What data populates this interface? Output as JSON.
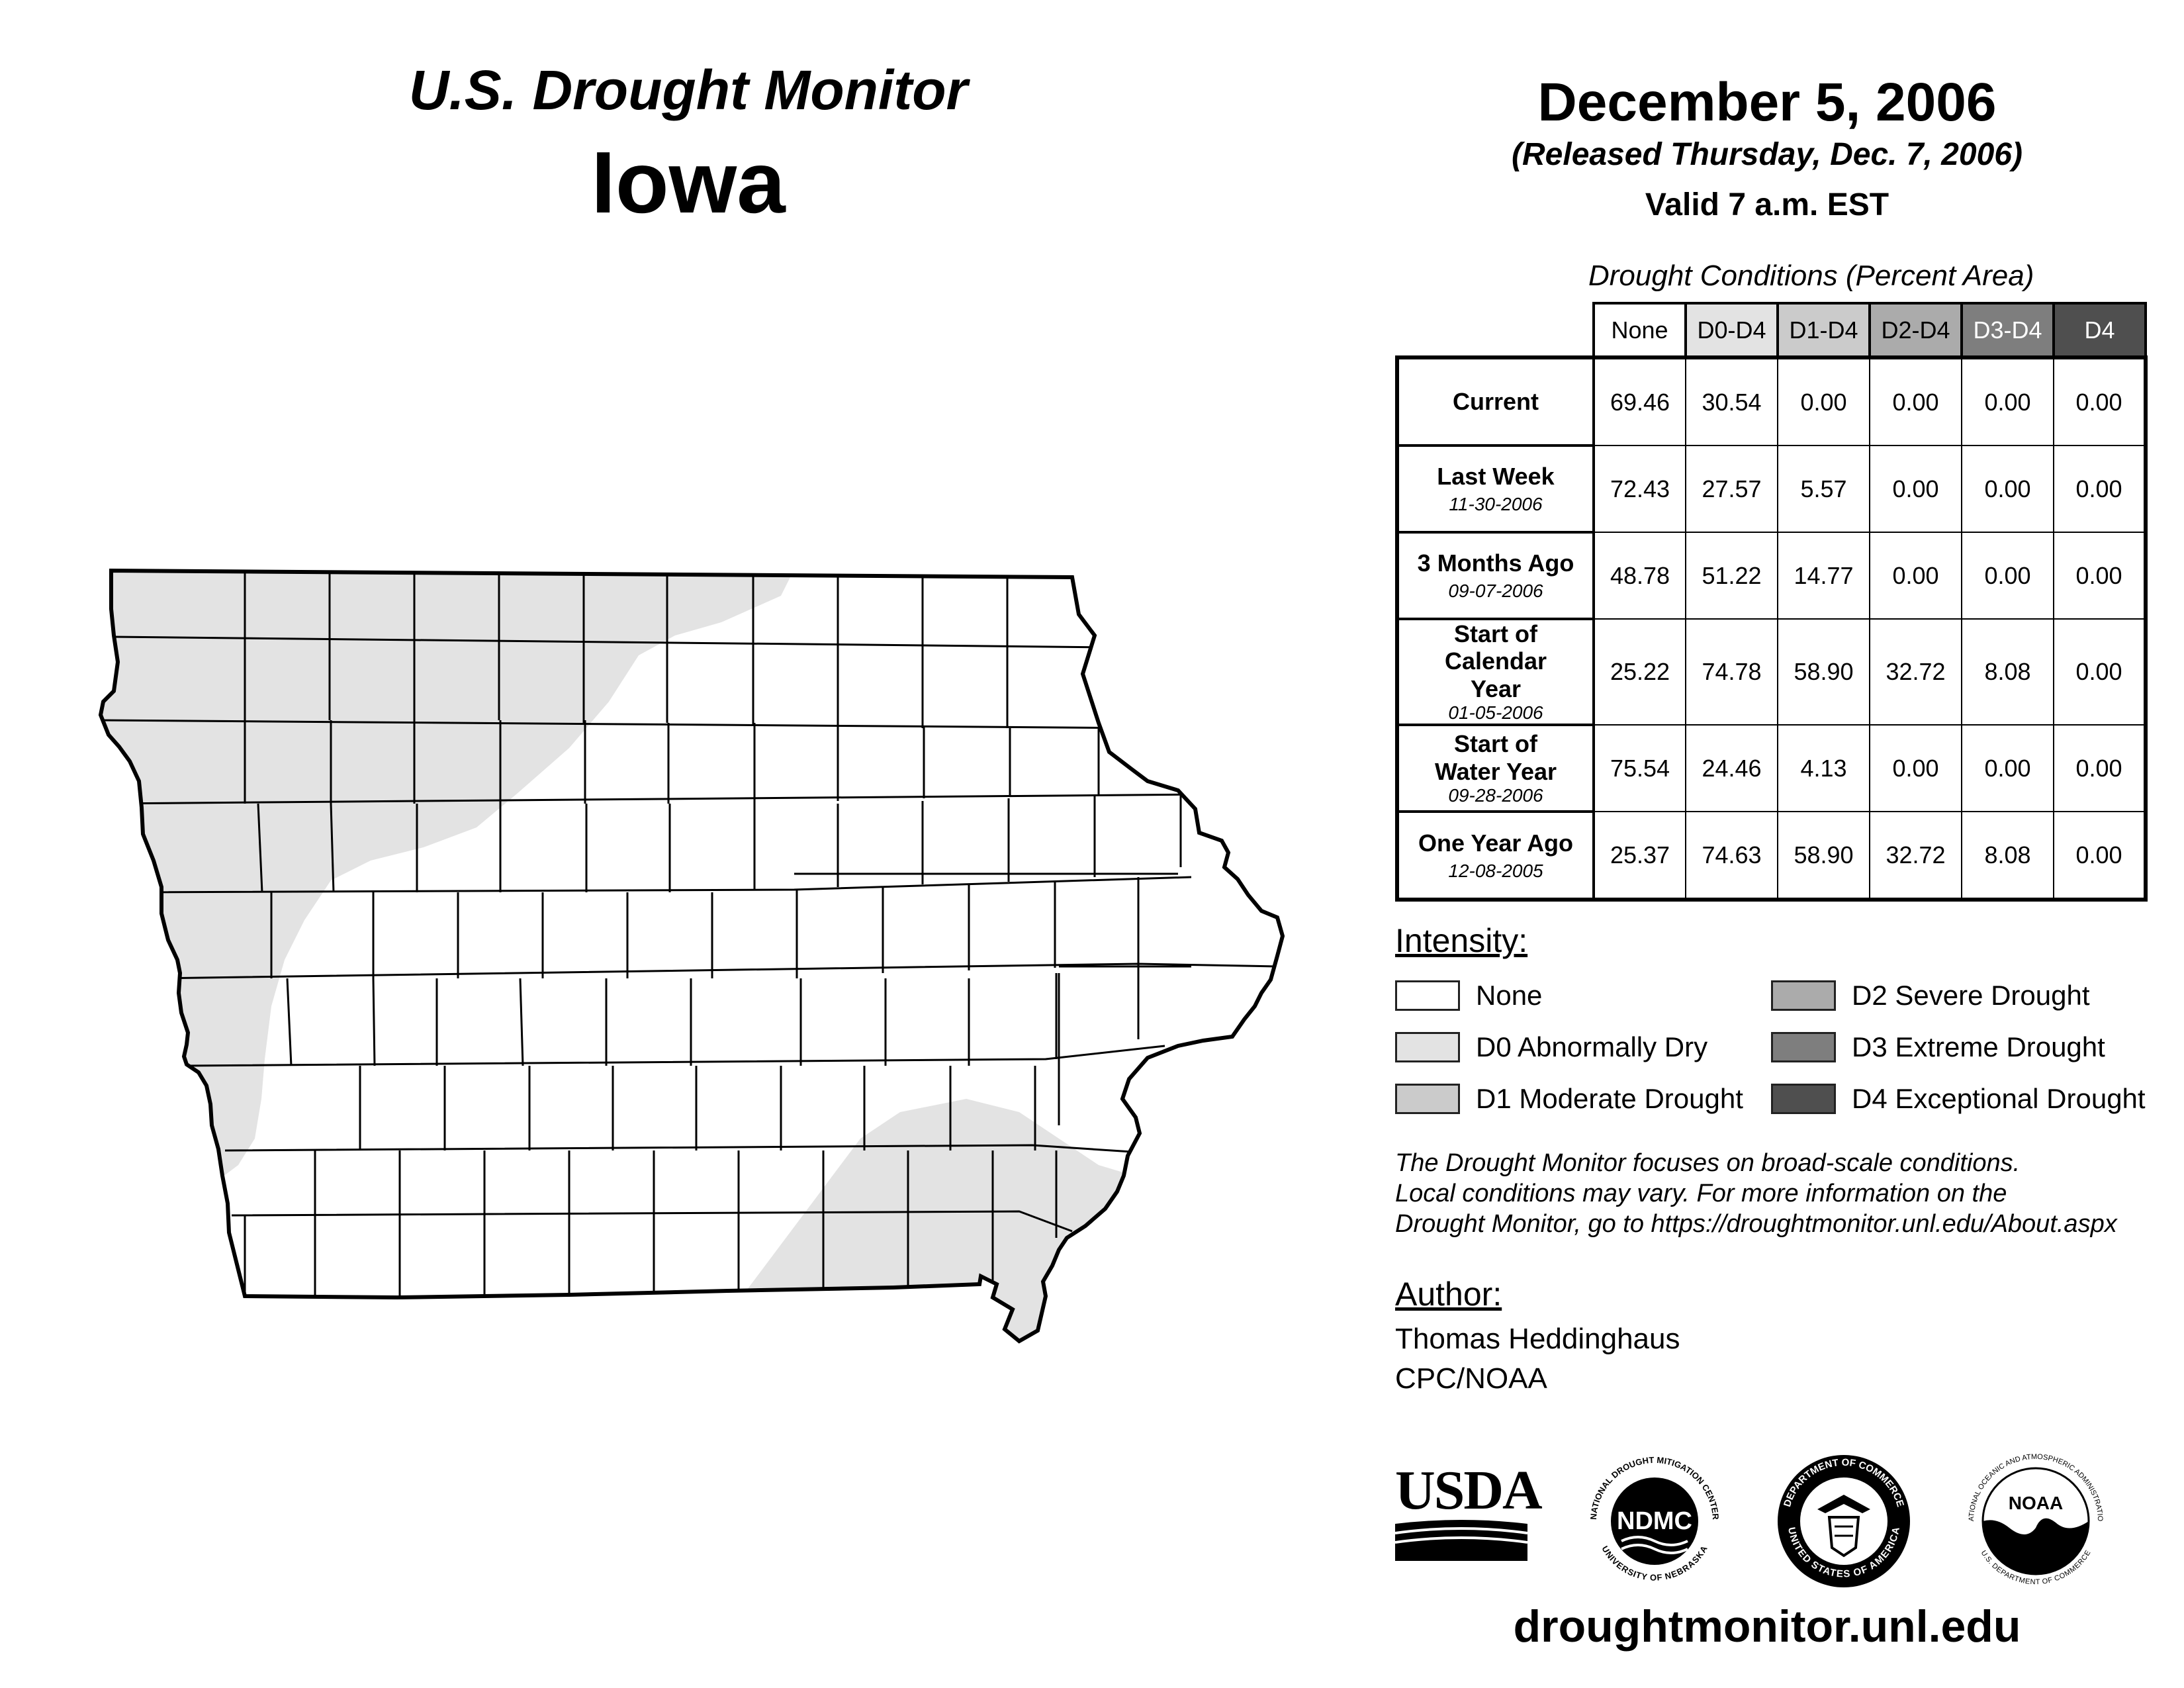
{
  "header": {
    "title_line1": "U.S. Drought Monitor",
    "state": "Iowa",
    "date": "December 5, 2006",
    "released": "(Released Thursday, Dec. 7, 2006)",
    "valid": "Valid 7 a.m. EST"
  },
  "stats": {
    "caption": "Drought Conditions (Percent Area)",
    "columns": [
      "None",
      "D0-D4",
      "D1-D4",
      "D2-D4",
      "D3-D4",
      "D4"
    ],
    "rows": [
      {
        "label": "Current",
        "date": "",
        "values": [
          "69.46",
          "30.54",
          "0.00",
          "0.00",
          "0.00",
          "0.00"
        ]
      },
      {
        "label": "Last Week",
        "date": "11-30-2006",
        "values": [
          "72.43",
          "27.57",
          "5.57",
          "0.00",
          "0.00",
          "0.00"
        ]
      },
      {
        "label": "3 Months Ago",
        "date": "09-07-2006",
        "values": [
          "48.78",
          "51.22",
          "14.77",
          "0.00",
          "0.00",
          "0.00"
        ]
      },
      {
        "label": "Start of Calendar Year",
        "date": "01-05-2006",
        "values": [
          "25.22",
          "74.78",
          "58.90",
          "32.72",
          "8.08",
          "0.00"
        ]
      },
      {
        "label": "Start of Water Year",
        "date": "09-28-2006",
        "values": [
          "75.54",
          "24.46",
          "4.13",
          "0.00",
          "0.00",
          "0.00"
        ]
      },
      {
        "label": "One Year Ago",
        "date": "12-08-2005",
        "values": [
          "25.37",
          "74.63",
          "58.90",
          "32.72",
          "8.08",
          "0.00"
        ]
      }
    ]
  },
  "legend": {
    "title": "Intensity:",
    "items": [
      {
        "label": "None",
        "color": "#ffffff"
      },
      {
        "label": "D0 Abnormally Dry",
        "color": "#e3e3e3"
      },
      {
        "label": "D1 Moderate Drought",
        "color": "#cbcbcb"
      },
      {
        "label": "D2 Severe Drought",
        "color": "#ababab"
      },
      {
        "label": "D3 Extreme Drought",
        "color": "#7e7e7e"
      },
      {
        "label": "D4 Exceptional Drought",
        "color": "#4f4f4f"
      }
    ]
  },
  "note": [
    "The Drought Monitor focuses on broad-scale conditions.",
    "Local conditions may vary. For more information on the",
    "Drought Monitor, go to https://droughtmonitor.unl.edu/About.aspx"
  ],
  "author": {
    "title": "Author:",
    "name": "Thomas Heddinghaus",
    "org": "CPC/NOAA"
  },
  "logos": {
    "usda": "USDA",
    "ndmc": "NDMC",
    "ndmc_ring_top": "NATIONAL DROUGHT MITIGATION CENTER",
    "ndmc_ring_bottom": "UNIVERSITY OF NEBRASKA",
    "doc_ring_top": "DEPARTMENT OF COMMERCE",
    "doc_ring_bottom": "UNITED STATES OF AMERICA",
    "noaa": "NOAA",
    "noaa_ring_top": "NATIONAL OCEANIC AND ATMOSPHERIC ADMINISTRATION",
    "noaa_ring_bottom": "U.S. DEPARTMENT OF COMMERCE"
  },
  "website": "droughtmonitor.unl.edu",
  "colors": {
    "d0": "#e3e3e3",
    "county_line": "#000000"
  }
}
